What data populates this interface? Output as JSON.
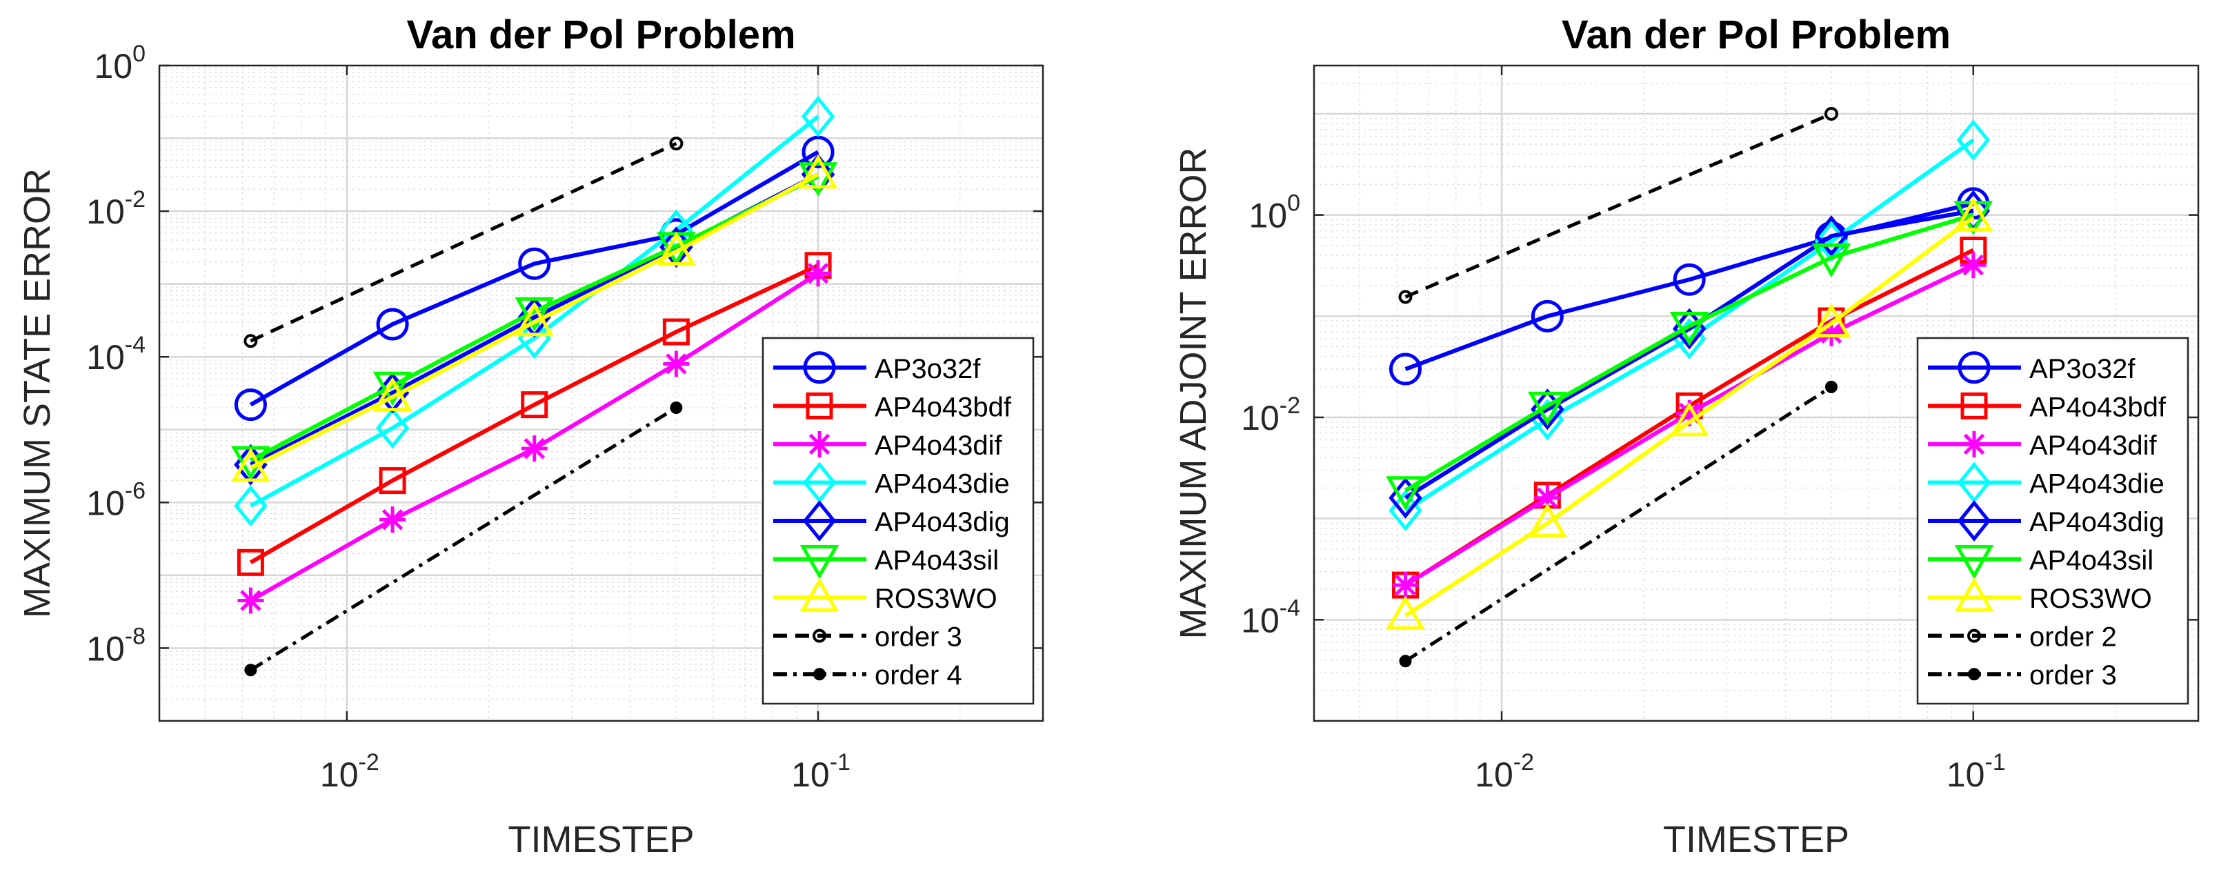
{
  "chart_data": [
    {
      "type": "line",
      "title": "Van der Pol Problem",
      "xlabel": "TIMESTEP",
      "ylabel": "MAXIMUM STATE ERROR",
      "xscale": "log",
      "yscale": "log",
      "xlim": [
        0.004,
        0.3
      ],
      "ylim": [
        1e-09,
        1
      ],
      "grid": true,
      "legend_position": "bottom-right",
      "x_ticks": [
        {
          "value": 0.01,
          "base": "10",
          "exp": "-2"
        },
        {
          "value": 0.1,
          "base": "10",
          "exp": "-1"
        }
      ],
      "y_ticks": [
        {
          "value": 1e-08,
          "base": "10",
          "exp": "-8"
        },
        {
          "value": 1e-06,
          "base": "10",
          "exp": "-6"
        },
        {
          "value": 0.0001,
          "base": "10",
          "exp": "-4"
        },
        {
          "value": 0.01,
          "base": "10",
          "exp": "-2"
        },
        {
          "value": 1,
          "base": "10",
          "exp": "0"
        }
      ],
      "series": [
        {
          "name": "AP3o32f",
          "color": "#0000ff",
          "marker": "circle",
          "style": "solid",
          "x": [
            0.00625,
            0.0125,
            0.025,
            0.05,
            0.1
          ],
          "y": [
            2.2e-05,
            0.00028,
            0.0019,
            0.0048,
            0.065
          ]
        },
        {
          "name": "AP4o43bdf",
          "color": "#ff0000",
          "marker": "square",
          "style": "solid",
          "x": [
            0.00625,
            0.0125,
            0.025,
            0.05,
            0.1
          ],
          "y": [
            1.5e-07,
            2e-06,
            2.2e-05,
            0.00022,
            0.0018
          ]
        },
        {
          "name": "AP4o43dif",
          "color": "#ff00ff",
          "marker": "asterisk",
          "style": "solid",
          "x": [
            0.00625,
            0.0125,
            0.025,
            0.05,
            0.1
          ],
          "y": [
            4.5e-08,
            5.8e-07,
            5.5e-06,
            8e-05,
            0.0014
          ]
        },
        {
          "name": "AP4o43die",
          "color": "#00ffff",
          "marker": "diamond",
          "style": "solid",
          "x": [
            0.00625,
            0.0125,
            0.025,
            0.05,
            0.1
          ],
          "y": [
            9e-07,
            1.05e-05,
            0.00018,
            0.0055,
            0.2
          ]
        },
        {
          "name": "AP4o43dig",
          "color": "#0000ff",
          "marker": "diamond",
          "style": "solid",
          "x": [
            0.00625,
            0.0125,
            0.025,
            0.05,
            0.1
          ],
          "y": [
            3.3e-06,
            3.2e-05,
            0.00035,
            0.0032,
            0.032
          ]
        },
        {
          "name": "AP4o43sil",
          "color": "#00ff00",
          "marker": "triangle-down",
          "style": "solid",
          "x": [
            0.00625,
            0.0125,
            0.025,
            0.05,
            0.1
          ],
          "y": [
            3.8e-06,
            4e-05,
            0.00042,
            0.0033,
            0.03
          ]
        },
        {
          "name": "ROS3WO",
          "color": "#ffff00",
          "marker": "triangle-up",
          "style": "solid",
          "x": [
            0.00625,
            0.0125,
            0.025,
            0.05,
            0.1
          ],
          "y": [
            3e-06,
            2.8e-05,
            0.0003,
            0.0028,
            0.032
          ]
        },
        {
          "name": "order 3",
          "color": "#000000",
          "marker": "small-circle",
          "style": "dashed",
          "x": [
            0.00625,
            0.05
          ],
          "y": [
            0.000165,
            0.085
          ]
        },
        {
          "name": "order 4",
          "color": "#000000",
          "marker": "dot",
          "style": "dashdot",
          "x": [
            0.00625,
            0.05
          ],
          "y": [
            5e-09,
            2e-05
          ]
        }
      ]
    },
    {
      "type": "line",
      "title": "Van der Pol Problem",
      "xlabel": "TIMESTEP",
      "ylabel": "MAXIMUM ADJOINT ERROR",
      "xscale": "log",
      "yscale": "log",
      "xlim": [
        0.004,
        0.3
      ],
      "ylim": [
        1e-05,
        30
      ],
      "grid": true,
      "legend_position": "bottom-right",
      "x_ticks": [
        {
          "value": 0.01,
          "base": "10",
          "exp": "-2"
        },
        {
          "value": 0.1,
          "base": "10",
          "exp": "-1"
        }
      ],
      "y_ticks": [
        {
          "value": 0.0001,
          "base": "10",
          "exp": "-4"
        },
        {
          "value": 0.01,
          "base": "10",
          "exp": "-2"
        },
        {
          "value": 1,
          "base": "10",
          "exp": "0"
        }
      ],
      "series": [
        {
          "name": "AP3o32f",
          "color": "#0000ff",
          "marker": "circle",
          "style": "solid",
          "x": [
            0.00625,
            0.0125,
            0.025,
            0.05,
            0.1
          ],
          "y": [
            0.03,
            0.1,
            0.23,
            0.6,
            1.3
          ]
        },
        {
          "name": "AP4o43bdf",
          "color": "#ff0000",
          "marker": "square",
          "style": "solid",
          "x": [
            0.00625,
            0.0125,
            0.025,
            0.05,
            0.1
          ],
          "y": [
            0.00022,
            0.0017,
            0.013,
            0.09,
            0.45
          ]
        },
        {
          "name": "AP4o43dif",
          "color": "#ff00ff",
          "marker": "asterisk",
          "style": "solid",
          "x": [
            0.00625,
            0.0125,
            0.025,
            0.05,
            0.1
          ],
          "y": [
            0.00022,
            0.0016,
            0.011,
            0.068,
            0.32
          ]
        },
        {
          "name": "AP4o43die",
          "color": "#00ffff",
          "marker": "diamond",
          "style": "solid",
          "x": [
            0.00625,
            0.0125,
            0.025,
            0.05,
            0.1
          ],
          "y": [
            0.0012,
            0.0095,
            0.06,
            0.55,
            5.5
          ]
        },
        {
          "name": "AP4o43dig",
          "color": "#0000ff",
          "marker": "diamond",
          "style": "solid",
          "x": [
            0.00625,
            0.0125,
            0.025,
            0.05,
            0.1
          ],
          "y": [
            0.0016,
            0.012,
            0.075,
            0.62,
            1.1
          ]
        },
        {
          "name": "AP4o43sil",
          "color": "#00ff00",
          "marker": "triangle-down",
          "style": "solid",
          "x": [
            0.00625,
            0.0125,
            0.025,
            0.05,
            0.1
          ],
          "y": [
            0.0019,
            0.013,
            0.08,
            0.38,
            1.0
          ]
        },
        {
          "name": "ROS3WO",
          "color": "#ffff00",
          "marker": "triangle-up",
          "style": "solid",
          "x": [
            0.00625,
            0.0125,
            0.025,
            0.05,
            0.1
          ],
          "y": [
            0.00011,
            0.0009,
            0.009,
            0.085,
            0.95
          ]
        },
        {
          "name": "order 2",
          "color": "#000000",
          "marker": "small-circle",
          "style": "dashed",
          "x": [
            0.00625,
            0.05
          ],
          "y": [
            0.155,
            10
          ]
        },
        {
          "name": "order 3",
          "color": "#000000",
          "marker": "dot",
          "style": "dashdot",
          "x": [
            0.00625,
            0.05
          ],
          "y": [
            3.9e-05,
            0.02
          ]
        }
      ]
    }
  ]
}
